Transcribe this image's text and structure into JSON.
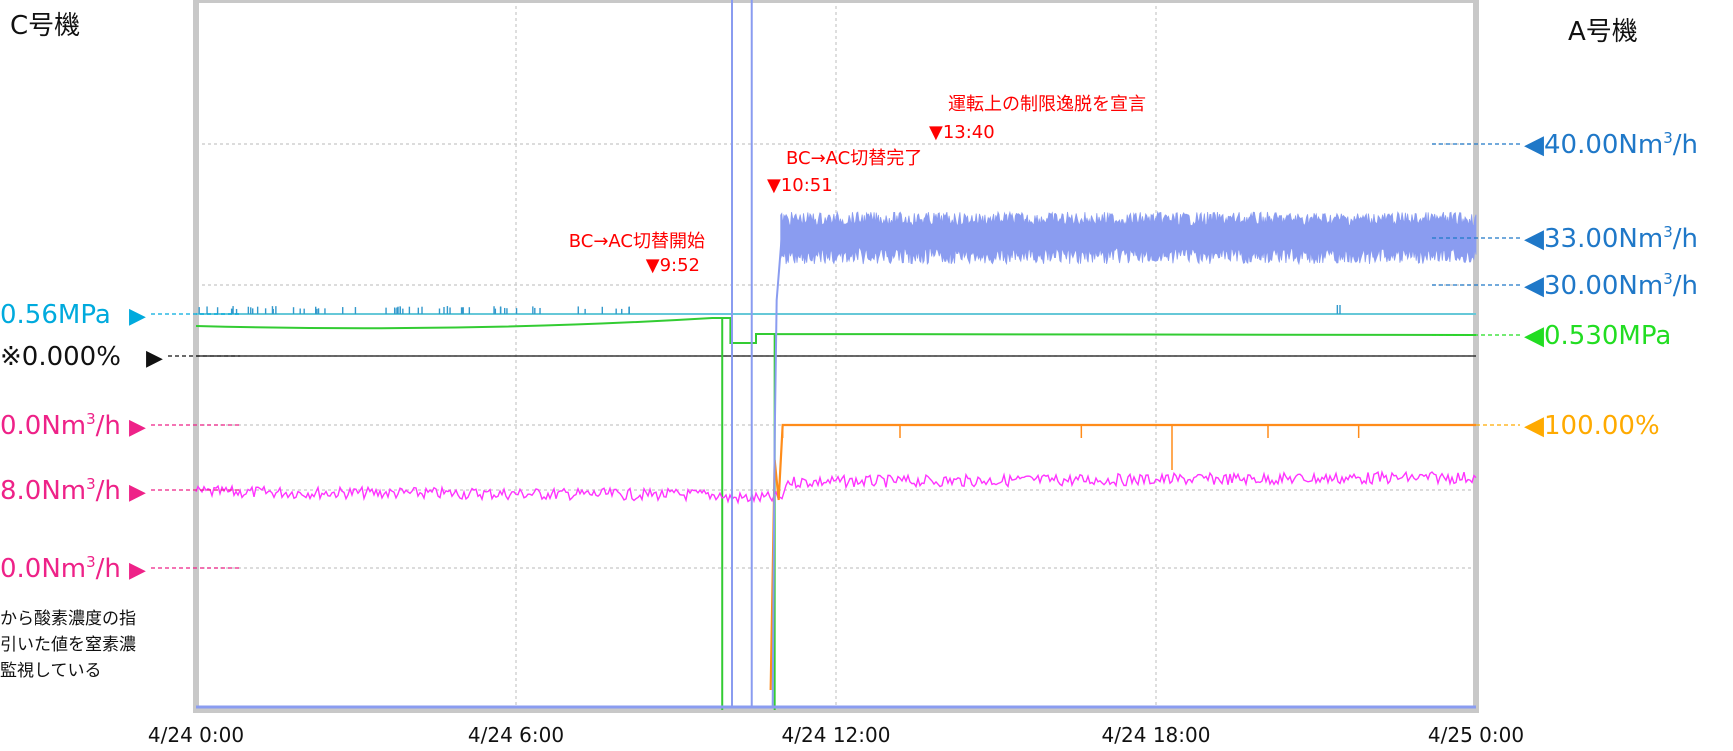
{
  "left_header": "C号機",
  "right_header": "A号機",
  "note_lines": [
    "から酸素濃度の指",
    "引いた値を窒素濃",
    "監視している"
  ],
  "colors": {
    "blue_flow": "#8a9cf0",
    "pink_flow": "#ff33ff",
    "green_pressure": "#33cc33",
    "orange_percent": "#ff8c1a",
    "cyan_pressure": "#66c8d8",
    "red_events": "#ff0000",
    "left_cyan_label": "#00aadd",
    "left_pink_label": "#ee2288",
    "right_blue_label": "#1f78c8",
    "right_green_label": "#22dd22",
    "right_orange_label": "#ffaa00"
  },
  "left_labels": [
    {
      "value": "0.56MPa",
      "color": "#00aadd"
    },
    {
      "value": "※0.000%",
      "color": "#111111"
    },
    {
      "value": "0.0Nm",
      "color": "#ee2288"
    },
    {
      "value": "8.0Nm",
      "color": "#ee2288"
    },
    {
      "value": "0.0Nm",
      "color": "#ee2288"
    }
  ],
  "right_labels": [
    {
      "value": "◀40.00Nm",
      "color": "#1f78c8"
    },
    {
      "value": "◀33.00Nm",
      "color": "#1f78c8"
    },
    {
      "value": "◀30.00Nm",
      "color": "#1f78c8"
    },
    {
      "value": "◀0.530MPa",
      "color": "#22dd22"
    },
    {
      "value": "◀100.00%",
      "color": "#ffaa00"
    }
  ],
  "chart_data": {
    "type": "line",
    "x_axis": {
      "ticks": [
        "4/24 0:00",
        "4/24 6:00",
        "4/24 12:00",
        "4/24 18:00",
        "4/25 0:00"
      ],
      "start": "4/24 0:00",
      "end": "4/25 0:00"
    },
    "grid": true,
    "events": [
      {
        "time": "9:52",
        "label": "BC→AC切替開始"
      },
      {
        "time": "10:51",
        "label": "BC→AC切替完了"
      },
      {
        "time": "13:40",
        "label": "運転上の制限逸脱を宣言"
      }
    ],
    "series_approx": [
      {
        "color_key": "blue_flow",
        "before_switch": "near zero",
        "after_switch": "about 33 Nm3/h, oscillating"
      },
      {
        "color_key": "pink_flow",
        "level": "about 8.0 Nm3/h"
      },
      {
        "color_key": "green_pressure",
        "level": "about 0.53 MPa"
      },
      {
        "color_key": "orange_percent",
        "after_switch": "100.00%"
      },
      {
        "color_key": "cyan_pressure",
        "level": "0.56 MPa"
      }
    ]
  }
}
